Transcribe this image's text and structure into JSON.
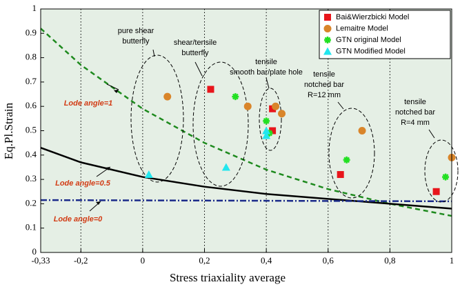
{
  "chart_data": {
    "type": "scatter",
    "xlabel": "Stress triaxiality average",
    "ylabel": "Eq.Pl.Strain",
    "xlim": [
      -0.33,
      1
    ],
    "ylim": [
      0,
      1
    ],
    "xticks": [
      {
        "value": -0.33,
        "label": "-0,33"
      },
      {
        "value": -0.2,
        "label": "-0,2"
      },
      0,
      {
        "value": 0.2,
        "label": "0,2"
      },
      {
        "value": 0.4,
        "label": "0,4"
      },
      {
        "value": 0.6,
        "label": "0,6"
      },
      {
        "value": 0.8,
        "label": "0,8"
      },
      1
    ],
    "yticks": [
      0,
      0.1,
      0.2,
      0.3,
      0.4,
      0.5,
      0.6,
      0.7,
      0.8,
      0.9,
      1
    ],
    "grid": "x",
    "legend": "top-right",
    "background": "#e5efe5",
    "series": [
      {
        "name": "Bai&Wierzbicki Model",
        "color": "#e8151b",
        "marker": "square",
        "x": [
          0.22,
          0.42,
          0.42,
          0.64,
          0.95
        ],
        "values": [
          0.67,
          0.59,
          0.5,
          0.32,
          0.25
        ]
      },
      {
        "name": "Lemaitre Model",
        "color": "#d9852a",
        "marker": "circle",
        "x": [
          0.08,
          0.34,
          0.43,
          0.45,
          0.71,
          1
        ],
        "values": [
          0.64,
          0.6,
          0.6,
          0.57,
          0.5,
          0.39
        ]
      },
      {
        "name": "GTN original Model",
        "color": "#22e022",
        "marker": "star",
        "x": [
          0.3,
          0.4,
          0.41,
          0.66,
          0.98
        ],
        "values": [
          0.64,
          0.54,
          0.49,
          0.38,
          0.31
        ]
      },
      {
        "name": "GTN Modified Model",
        "color": "#22e6ee",
        "marker": "triangle",
        "x": [
          0.02,
          0.27,
          0.4,
          0.4
        ],
        "values": [
          0.32,
          0.35,
          0.5,
          0.48
        ]
      }
    ],
    "curves": [
      {
        "label": "Lode angle=1",
        "color": "#1e8a1e",
        "style": "dashed",
        "x": [
          -0.33,
          -0.2,
          0,
          0.2,
          0.4,
          0.6,
          0.8,
          1
        ],
        "values": [
          0.92,
          0.77,
          0.59,
          0.45,
          0.34,
          0.26,
          0.2,
          0.15
        ]
      },
      {
        "label": "Lode angle=0.5",
        "color": "#000000",
        "style": "solid",
        "x": [
          -0.33,
          -0.2,
          0,
          0.2,
          0.4,
          0.6,
          0.8,
          1
        ],
        "values": [
          0.43,
          0.37,
          0.31,
          0.27,
          0.24,
          0.22,
          0.2,
          0.18
        ]
      },
      {
        "label": "Lode angle=0",
        "color": "#1a2a8a",
        "style": "dashdot",
        "x": [
          -0.33,
          1
        ],
        "values": [
          0.215,
          0.21
        ]
      }
    ],
    "annotations": [
      [
        "pure shear",
        "butterfly"
      ],
      [
        "shear/tensile",
        "butterfly"
      ],
      [
        "tensile",
        "smooth bar/plate hole"
      ],
      [
        "tensile",
        "notched bar",
        "R=12 mm"
      ],
      [
        "tensile",
        "notched bar",
        "R=4 mm"
      ]
    ]
  }
}
